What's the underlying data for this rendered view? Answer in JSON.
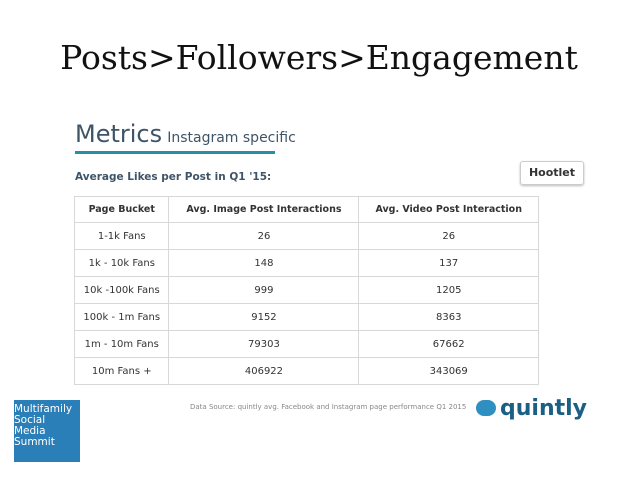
{
  "header": {
    "title": "Posts>Followers>Engagement"
  },
  "metrics": {
    "heading": "Metrics",
    "subheading": "Instagram specific",
    "caption": "Average Likes per Post in Q1 '15:",
    "badge": "Hootlet"
  },
  "table": {
    "columns": [
      "Page Bucket",
      "Avg. Image Post Interactions",
      "Avg. Video Post Interaction"
    ],
    "rows": [
      [
        "1-1k Fans",
        26,
        26
      ],
      [
        "1k - 10k Fans",
        148,
        137
      ],
      [
        "10k -100k Fans",
        999,
        1205
      ],
      [
        "100k - 1m Fans",
        9152,
        8363
      ],
      [
        "1m - 10m Fans",
        79303,
        67662
      ],
      [
        "10m Fans +",
        406922,
        343069
      ]
    ]
  },
  "footer": {
    "source": "Data Source: quintly avg. Facebook and Instagram page performance Q1 2015",
    "brand": "quintly",
    "logo": [
      "Multifamily",
      "Social",
      "Media",
      "Summit"
    ]
  }
}
